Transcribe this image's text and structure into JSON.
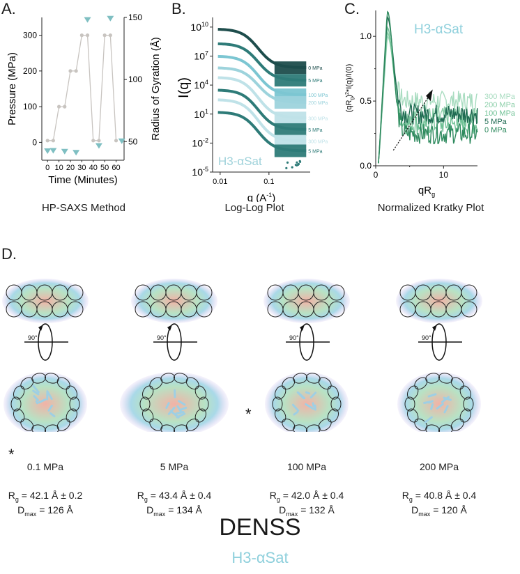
{
  "panels": {
    "A": {
      "letter": "A.",
      "caption": "HP-SAXS Method"
    },
    "B": {
      "letter": "B.",
      "caption": "Log-Log Plot",
      "watermark": "H3-αSat"
    },
    "C": {
      "letter": "C.",
      "caption": "Normalized Kratky Plot",
      "watermark": "H3-αSat"
    },
    "D": {
      "letter": "D."
    }
  },
  "chart_data": [
    {
      "type": "line",
      "id": "A",
      "xlabel": "Time (Minutes)",
      "ylabel": "Pressure (MPa)",
      "y2label": "Radius of Gyration (Å)",
      "xlim": [
        -5,
        67
      ],
      "ylim": [
        -50,
        350
      ],
      "y2lim": [
        35,
        150
      ],
      "xticks": [
        "0",
        "10",
        "20",
        "30",
        "40",
        "50",
        "60"
      ],
      "yticks": [
        "0",
        "100",
        "200",
        "300"
      ],
      "y2ticks": [
        "50",
        "100",
        "150"
      ],
      "series": [
        {
          "name": "Pressure",
          "color": "#c8c4c0",
          "axis": "left",
          "x": [
            0,
            5,
            10,
            15,
            20,
            25,
            30,
            35,
            40,
            45,
            50,
            55,
            60
          ],
          "y": [
            5,
            5,
            100,
            100,
            200,
            200,
            300,
            300,
            5,
            5,
            300,
            300,
            5
          ]
        },
        {
          "name": "Radius of Gyration",
          "color": "#7fbfc2",
          "axis": "right",
          "marker": "triangle-down",
          "x": [
            0,
            5,
            15,
            25,
            35,
            45,
            55,
            65
          ],
          "y": [
            42.3,
            42.6,
            41.9,
            41.0,
            148,
            46.5,
            149,
            50.3
          ]
        }
      ]
    },
    {
      "type": "line",
      "id": "B",
      "xlabel": "q (A-1)",
      "ylabel": "I(q)",
      "xscale": "log",
      "yscale": "log",
      "xlim": [
        0.007,
        0.7
      ],
      "ylim_exp": [
        -5,
        11
      ],
      "xticks": [
        "0.01",
        "0.1"
      ],
      "yticks": [
        "10^10",
        "10^7",
        "10^4",
        "10^1",
        "10^-2",
        "10^-5"
      ],
      "series": [
        {
          "name": "0 MPa",
          "color": "#1e4d4c",
          "start_exp": 9.8,
          "plateau_exp": 5.8
        },
        {
          "name": "5 MPa",
          "color": "#2e7b78",
          "start_exp": 8.3,
          "plateau_exp": 4.5
        },
        {
          "name": "100 MPa",
          "color": "#7cc6d2",
          "start_exp": 7.0,
          "plateau_exp": 3.0
        },
        {
          "name": "200 MPa",
          "color": "#9dd3dc",
          "start_exp": 5.8,
          "plateau_exp": 2.2
        },
        {
          "name": "300 MPa",
          "color": "#bfe2e8",
          "start_exp": 4.8,
          "plateau_exp": 0.6
        },
        {
          "name": "5 MPa",
          "color": "#2e7b78",
          "start_exp": 3.5,
          "plateau_exp": -0.6
        },
        {
          "name": "300 MPa",
          "color": "#bfe2e8",
          "start_exp": 2.5,
          "plateau_exp": -1.8
        },
        {
          "name": "5 MPa",
          "color": "#2e7b78",
          "start_exp": 1.2,
          "plateau_exp": -2.8
        }
      ]
    },
    {
      "type": "line",
      "id": "C",
      "xlabel": "qRg",
      "ylabel": "(qRg)^2*I(q)/I(0)",
      "xlim": [
        0,
        15
      ],
      "ylim": [
        0,
        1.2
      ],
      "xticks": [
        "0",
        "10"
      ],
      "yticks": [
        "0.0",
        "0.5",
        "1.0"
      ],
      "series": [
        {
          "name": "300 MPa",
          "color": "#a8dcc0",
          "peak": 1.0,
          "tail": 0.5
        },
        {
          "name": "200 MPa",
          "color": "#8ccfa9",
          "peak": 1.03,
          "tail": 0.38
        },
        {
          "name": "100 MPa",
          "color": "#6fc195",
          "peak": 1.07,
          "tail": 0.32
        },
        {
          "name": "5 MPa",
          "color": "#1f6b52",
          "peak": 1.15,
          "tail": 0.4
        },
        {
          "name": "0 MPa",
          "color": "#2e8a5e",
          "peak": 1.2,
          "tail": 0.25
        }
      ]
    }
  ],
  "denss": {
    "rotation_label": "90°",
    "models": [
      {
        "pressure": "0.1 MPa",
        "rg_value": "= 42.1 Å ± 0.2",
        "dmax_value": "= 126 Å"
      },
      {
        "pressure": "5 MPa",
        "rg_value": "= 43.4 Å ± 0.4",
        "dmax_value": "= 134 Å"
      },
      {
        "pressure": "100 MPa",
        "rg_value": "= 42.0 Å ± 0.4",
        "dmax_value": "= 132 Å"
      },
      {
        "pressure": "200 MPa",
        "rg_value": "= 40.8 Å ± 0.4",
        "dmax_value": "= 120 Å"
      }
    ],
    "rg_symbol": "R",
    "rg_sub": "g",
    "dmax_symbol": "D",
    "dmax_sub": "max",
    "asterisk": "*",
    "title": "DENSS",
    "subtitle": "H3-αSat"
  }
}
